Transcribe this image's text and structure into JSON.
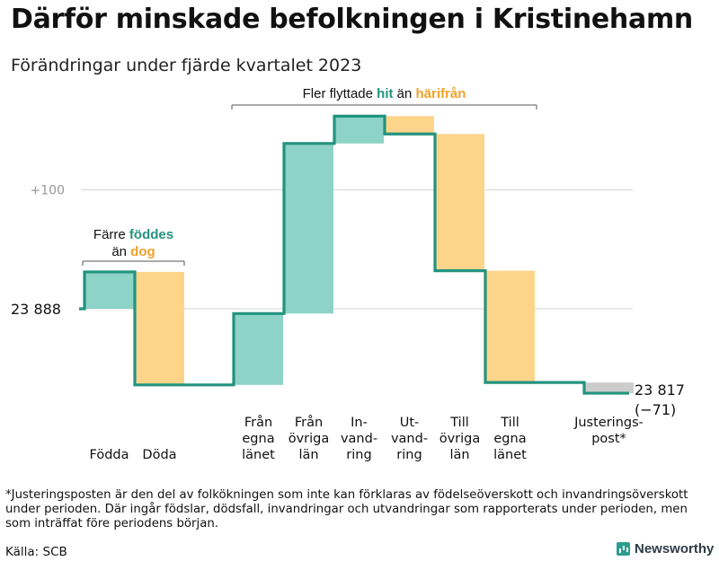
{
  "title": "Därför minskade befolkningen i Kristinehamn",
  "subtitle": "Förändringar under fjärde kvartalet 2023",
  "footnote": "*Justeringsposten är den del av folkökningen som inte kan förklaras av födelseöverskott och invandringsöverskott under perioden. Där ingår födslar, dödsfall, invandringar och utvandringar som rapporterats under perioden, men som inträffat före periodens början.",
  "source": "Källa: SCB",
  "brand": "Newsworthy",
  "colors": {
    "increase": "#8dd3c7",
    "decrease": "#fdd58a",
    "adjustment": "#cccccc",
    "line": "#23937f",
    "hit": "#23937f",
    "harifran": "#f0a12a",
    "grid": "#dcdcdc",
    "tick": "#999999"
  },
  "chart_data": {
    "type": "waterfall",
    "start_value": 23888,
    "start_label": "23  888",
    "end_value": 23817,
    "end_label": "23 817",
    "end_change_label": "(−71)",
    "ylim": [
      23840,
      23965
    ],
    "yticks": [
      {
        "value": 23988,
        "label": "+100"
      }
    ],
    "steps": [
      {
        "label": "Födda",
        "value": 31,
        "kind": "increase",
        "bottom": 23888,
        "top": 23919
      },
      {
        "label": "Döda",
        "value": -95,
        "kind": "decrease",
        "bottom": 23824,
        "top": 23919
      },
      {
        "label": "Från\negna\nlänet",
        "value": 60,
        "kind": "increase",
        "bottom": 23824,
        "top": 23884
      },
      {
        "label": "Från\növriga\nlän",
        "value": 143,
        "kind": "increase",
        "bottom": 23884,
        "top": 24027
      },
      {
        "label": "In-\nvand-\nring",
        "value": 23,
        "kind": "increase",
        "bottom": 24027,
        "top": 24050
      },
      {
        "label": "Ut-\nvand-\nring",
        "value": -15,
        "kind": "decrease",
        "bottom": 24035,
        "top": 24050
      },
      {
        "label": "Till\növriga\nlän",
        "value": -115,
        "kind": "decrease",
        "bottom": 23920,
        "top": 24035
      },
      {
        "label": "Till\negna\nlänet",
        "value": -94,
        "kind": "decrease",
        "bottom": 23826,
        "top": 23920
      },
      {
        "label": "Justerings-\npost*",
        "value": -9,
        "kind": "adjustment",
        "bottom": 23817,
        "top": 23826
      }
    ],
    "annotations": [
      {
        "id": "birth",
        "line1": "Färre",
        "highlight1": "föddes",
        "line2_pre": "än",
        "highlight2": "dog",
        "spans_steps": [
          0,
          1
        ]
      },
      {
        "id": "migration",
        "text_pre": "Fler flyttade",
        "highlight1": "hit",
        "text_mid": "än",
        "highlight2": "härifrån",
        "spans_steps": [
          2,
          7
        ]
      }
    ]
  }
}
